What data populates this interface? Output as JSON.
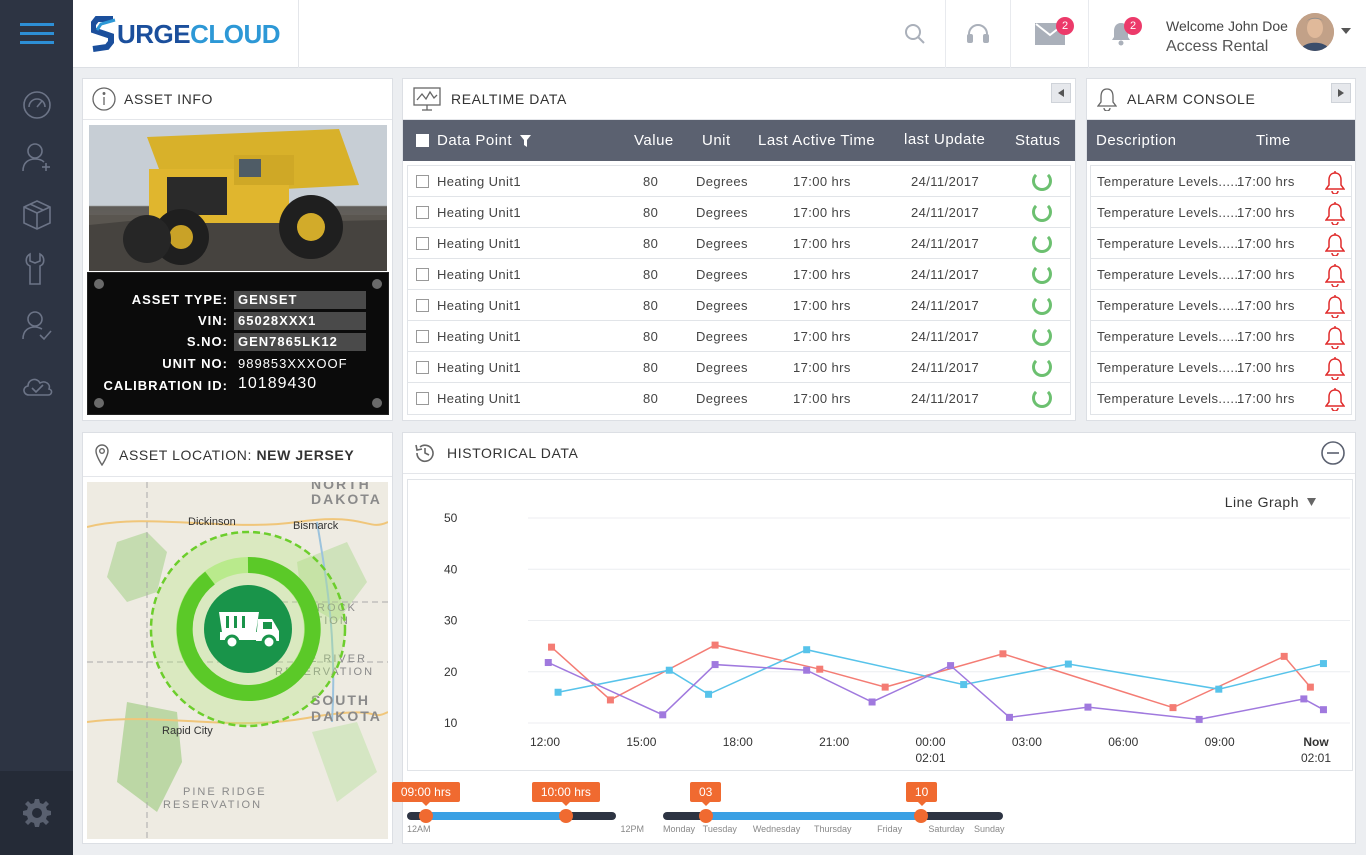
{
  "header": {
    "logo_prefix": "S",
    "logo_main": "URGE",
    "logo_suffix": "CLOUD",
    "mail_count": "2",
    "notif_count": "2",
    "welcome": "Welcome John Doe",
    "account": "Access Rental"
  },
  "asset_info": {
    "title": "ASSET INFO",
    "labels": {
      "type": "ASSET TYPE:",
      "vin": "VIN:",
      "sno": "S.NO:",
      "unit": "UNIT NO:",
      "calib": "CALIBRATION ID:"
    },
    "values": {
      "type": "GENSET",
      "vin": "65028XXX1",
      "sno": "GEN7865LK12",
      "unit": "989853XXXOOF",
      "calib": "10189430"
    }
  },
  "realtime": {
    "title": "REALTIME DATA",
    "columns": [
      "Data Point",
      "Value",
      "Unit",
      "Last Active Time",
      "last Update",
      "Status"
    ],
    "rows": [
      {
        "point": "Heating Unit1",
        "value": "80",
        "unit": "Degrees",
        "active": "17:00 hrs",
        "update": "24/11/2017"
      },
      {
        "point": "Heating Unit1",
        "value": "80",
        "unit": "Degrees",
        "active": "17:00 hrs",
        "update": "24/11/2017"
      },
      {
        "point": "Heating Unit1",
        "value": "80",
        "unit": "Degrees",
        "active": "17:00 hrs",
        "update": "24/11/2017"
      },
      {
        "point": "Heating Unit1",
        "value": "80",
        "unit": "Degrees",
        "active": "17:00 hrs",
        "update": "24/11/2017"
      },
      {
        "point": "Heating Unit1",
        "value": "80",
        "unit": "Degrees",
        "active": "17:00 hrs",
        "update": "24/11/2017"
      },
      {
        "point": "Heating Unit1",
        "value": "80",
        "unit": "Degrees",
        "active": "17:00 hrs",
        "update": "24/11/2017"
      },
      {
        "point": "Heating Unit1",
        "value": "80",
        "unit": "Degrees",
        "active": "17:00 hrs",
        "update": "24/11/2017"
      },
      {
        "point": "Heating Unit1",
        "value": "80",
        "unit": "Degrees",
        "active": "17:00 hrs",
        "update": "24/11/2017"
      }
    ]
  },
  "alarm": {
    "title": "ALARM CONSOLE",
    "columns": [
      "Description",
      "Time"
    ],
    "rows": [
      {
        "desc": "Temperature Levels.....",
        "time": "17:00 hrs"
      },
      {
        "desc": "Temperature Levels.....",
        "time": "17:00 hrs"
      },
      {
        "desc": "Temperature Levels.....",
        "time": "17:00 hrs"
      },
      {
        "desc": "Temperature Levels.....",
        "time": "17:00 hrs"
      },
      {
        "desc": "Temperature Levels.....",
        "time": "17:00 hrs"
      },
      {
        "desc": "Temperature Levels.....",
        "time": "17:00 hrs"
      },
      {
        "desc": "Temperature Levels.....",
        "time": "17:00 hrs"
      },
      {
        "desc": "Temperature Levels.....",
        "time": "17:00 hrs"
      }
    ]
  },
  "location": {
    "title_prefix": "ASSET LOCATION:",
    "title_place": "NEW JERSEY",
    "map": {
      "nd1": "NORTH",
      "nd2": "DAKOTA",
      "sd1": "SOUTH",
      "sd2": "DAKOTA",
      "dickinson": "Dickinson",
      "bismarck": "Bismarck",
      "rapid": "Rapid City",
      "rock": "ROCK",
      "ation": "ATION",
      "river": "E RIVER",
      "reservation": "RESERVATION",
      "pine1": "PINE RIDGE",
      "pine2": "RESERVATION"
    }
  },
  "historical": {
    "title": "HISTORICAL DATA",
    "graph_type": "Line Graph",
    "range_slider": {
      "low_label": "09:00 hrs",
      "high_label": "10:00 hrs",
      "start_label": "12AM",
      "end_label": "12PM",
      "low": 0.09,
      "high": 0.76
    },
    "day_slider": {
      "low_label": "03",
      "high_label": "10",
      "days": [
        "Monday",
        "Tuesday",
        "Wednesday",
        "Thursday",
        "Friday",
        "Saturday",
        "Sunday"
      ],
      "low": 0.125,
      "high": 0.76
    }
  },
  "chart_data": {
    "type": "line",
    "x": [
      "12:00",
      "15:00",
      "18:00",
      "21:00",
      "00:00",
      "03:00",
      "06:00",
      "09:00",
      "Now"
    ],
    "x_sub": [
      "",
      "",
      "",
      "",
      "02:01",
      "",
      "",
      "",
      "02:01"
    ],
    "y_ticks": [
      10,
      20,
      30,
      40,
      50
    ],
    "ylim": [
      10,
      50
    ],
    "grid": true,
    "series": [
      {
        "color": "#f47c74",
        "points": [
          [
            0.1,
            24.8
          ],
          [
            1.0,
            14.5
          ],
          [
            2.6,
            25.2
          ],
          [
            4.2,
            20.5
          ],
          [
            5.2,
            17.0
          ],
          [
            7.0,
            23.5
          ],
          [
            9.6,
            13.0
          ],
          [
            11.3,
            23.0
          ],
          [
            11.7,
            17.0
          ]
        ]
      },
      {
        "color": "#57c3ea",
        "points": [
          [
            0.2,
            16.0
          ],
          [
            1.9,
            20.3
          ],
          [
            2.5,
            15.6
          ],
          [
            4.0,
            24.3
          ],
          [
            6.4,
            17.5
          ],
          [
            8.0,
            21.5
          ],
          [
            10.3,
            16.6
          ],
          [
            11.9,
            21.6
          ]
        ]
      },
      {
        "color": "#a079de",
        "points": [
          [
            0.05,
            21.8
          ],
          [
            1.8,
            11.6
          ],
          [
            2.6,
            21.4
          ],
          [
            4.0,
            20.3
          ],
          [
            5.0,
            14.1
          ],
          [
            6.2,
            21.2
          ],
          [
            7.1,
            11.1
          ],
          [
            8.3,
            13.1
          ],
          [
            10.0,
            10.7
          ],
          [
            11.6,
            14.7
          ],
          [
            11.9,
            12.6
          ]
        ]
      }
    ]
  },
  "colors": {
    "sidebar": "#2d3443",
    "table_header": "#5b6170",
    "accent_orange": "#f06a30",
    "accent_blue": "#3aa0e4",
    "status_green": "#6cc070",
    "alarm_red": "#e02b2b"
  },
  "icons": {
    "sidebar": [
      "menu-icon",
      "dashboard-icon",
      "add-user-icon",
      "box-icon",
      "wrench-icon",
      "user-check-icon",
      "cloud-check-icon",
      "settings-icon"
    ],
    "header": [
      "search-icon",
      "headset-icon",
      "mail-icon",
      "bell-icon"
    ]
  }
}
